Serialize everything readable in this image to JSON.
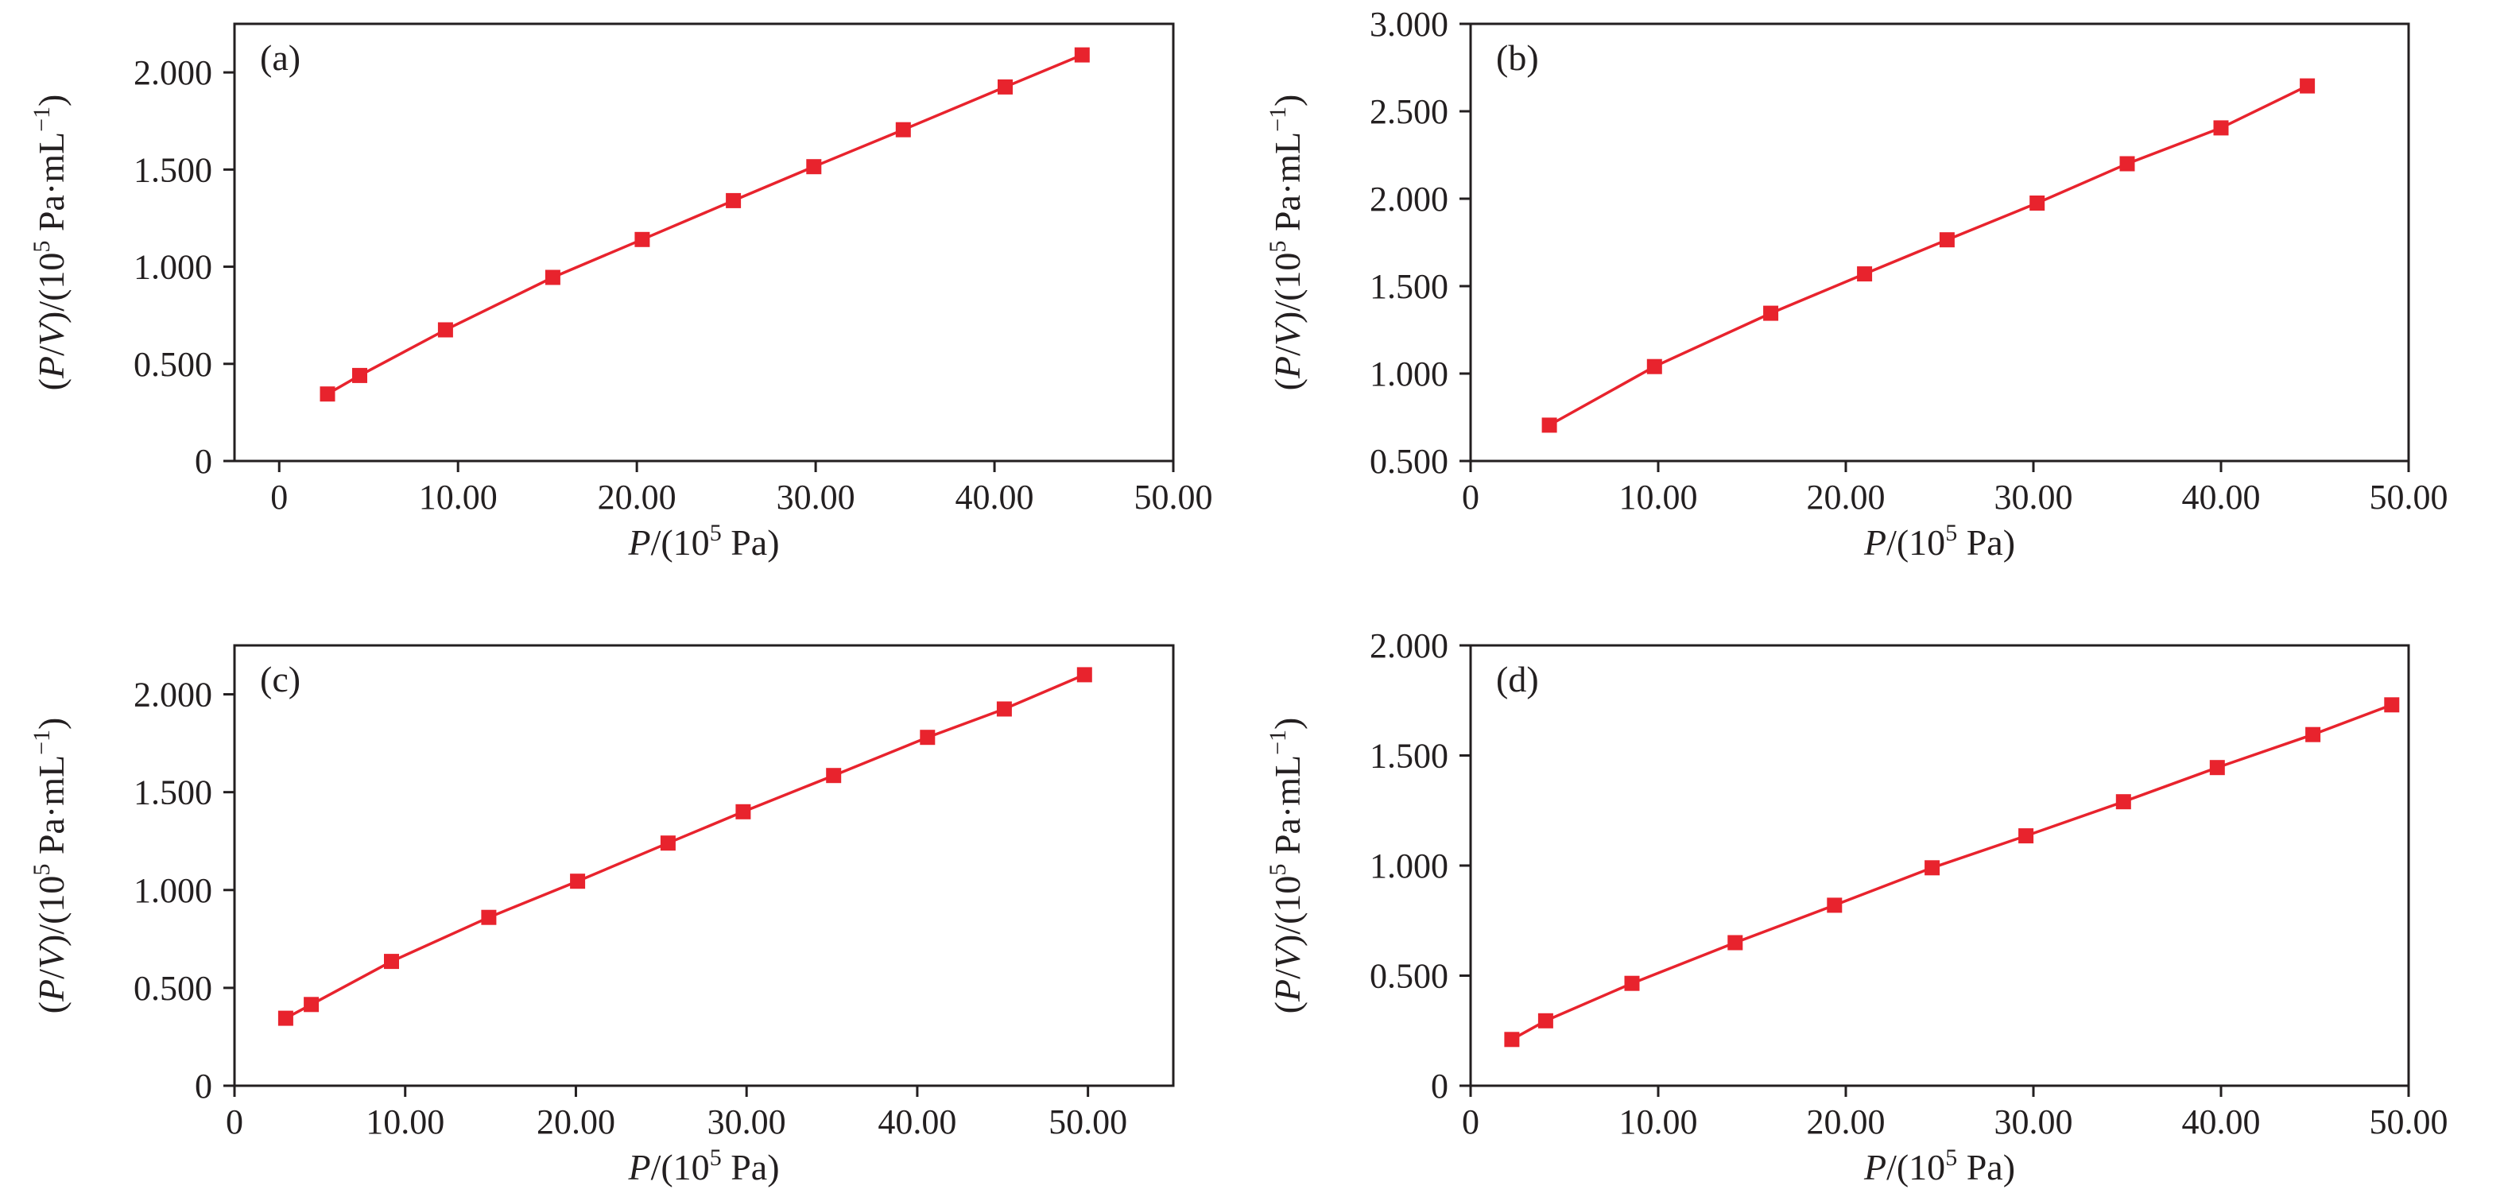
{
  "chart_data": [
    {
      "type": "line",
      "panel_label": "(a)",
      "xlabel": {
        "prefix": "P",
        "mid": "/(10",
        "sup": "5",
        "suffix": " Pa)"
      },
      "ylabel": {
        "p1": "(",
        "p2": "P",
        "p3": "/",
        "p4": "V",
        "p5": ")/(10",
        "sup": "5",
        "p6": " Pa·mL",
        "sup2": "−1",
        "p7": ")"
      },
      "xlim": [
        -2.5,
        50
      ],
      "ylim": [
        0,
        2.25
      ],
      "xticks": [
        0,
        10,
        20,
        30,
        40,
        50
      ],
      "xtick_labels": [
        "0",
        "10.00",
        "20.00",
        "30.00",
        "40.00",
        "50.00"
      ],
      "yticks": [
        0,
        0.5,
        1.0,
        1.5,
        2.0
      ],
      "ytick_labels": [
        "0",
        "0.500",
        "1.000",
        "1.500",
        "2.000"
      ],
      "grid": false,
      "x": [
        2.7,
        4.5,
        9.3,
        15.3,
        20.3,
        25.4,
        29.9,
        34.9,
        40.6,
        44.9
      ],
      "y": [
        0.345,
        0.44,
        0.675,
        0.945,
        1.14,
        1.34,
        1.515,
        1.705,
        1.925,
        2.09
      ]
    },
    {
      "type": "line",
      "panel_label": "(b)",
      "xlabel": {
        "prefix": "P",
        "mid": "/(10",
        "sup": "5",
        "suffix": " Pa)"
      },
      "ylabel": {
        "p1": "(",
        "p2": "P",
        "p3": "/",
        "p4": "V",
        "p5": ")/(10",
        "sup": "5",
        "p6": " Pa·mL",
        "sup2": "−1",
        "p7": ")"
      },
      "xlim": [
        0,
        50
      ],
      "ylim": [
        0.5,
        3.0
      ],
      "xticks": [
        0,
        10,
        20,
        30,
        40,
        50
      ],
      "xtick_labels": [
        "0",
        "10.00",
        "20.00",
        "30.00",
        "40.00",
        "50.00"
      ],
      "yticks": [
        0.5,
        1.0,
        1.5,
        2.0,
        2.5,
        3.0
      ],
      "ytick_labels": [
        "0.500",
        "1.000",
        "1.500",
        "2.000",
        "2.500",
        "3.000"
      ],
      "grid": false,
      "x": [
        4.2,
        9.8,
        16.0,
        21.0,
        25.4,
        30.2,
        35.0,
        40.0,
        44.6
      ],
      "y": [
        0.705,
        1.04,
        1.345,
        1.57,
        1.765,
        1.975,
        2.2,
        2.405,
        2.645
      ]
    },
    {
      "type": "line",
      "panel_label": "(c)",
      "xlabel": {
        "prefix": "P",
        "mid": "/(10",
        "sup": "5",
        "suffix": " Pa)"
      },
      "ylabel": {
        "p1": "(",
        "p2": "P",
        "p3": "/",
        "p4": "V",
        "p5": ")/(10",
        "sup": "5",
        "p6": " Pa·mL",
        "sup2": "−1",
        "p7": ")"
      },
      "xlim": [
        0,
        55
      ],
      "ylim": [
        0,
        2.25
      ],
      "xticks": [
        0,
        10,
        20,
        30,
        40,
        50
      ],
      "xtick_labels": [
        "0",
        "10.00",
        "20.00",
        "30.00",
        "40.00",
        "50.00"
      ],
      "yticks": [
        0,
        0.5,
        1.0,
        1.5,
        2.0
      ],
      "ytick_labels": [
        "0",
        "0.500",
        "1.000",
        "1.500",
        "2.000"
      ],
      "grid": false,
      "x": [
        3.0,
        4.5,
        9.2,
        14.9,
        20.1,
        25.4,
        29.8,
        35.1,
        40.6,
        45.1,
        49.8
      ],
      "y": [
        0.345,
        0.415,
        0.635,
        0.86,
        1.045,
        1.24,
        1.4,
        1.585,
        1.78,
        1.925,
        2.1
      ]
    },
    {
      "type": "line",
      "panel_label": "(d)",
      "xlabel": {
        "prefix": "P",
        "mid": "/(10",
        "sup": "5",
        "suffix": " Pa)"
      },
      "ylabel": {
        "p1": "(",
        "p2": "P",
        "p3": "/",
        "p4": "V",
        "p5": ")/(10",
        "sup": "5",
        "p6": " Pa·mL",
        "sup2": "−1",
        "p7": ")"
      },
      "xlim": [
        0,
        50
      ],
      "ylim": [
        0,
        2.0
      ],
      "xticks": [
        0,
        10,
        20,
        30,
        40,
        50
      ],
      "xtick_labels": [
        "0",
        "10.00",
        "20.00",
        "30.00",
        "40.00",
        "50.00"
      ],
      "yticks": [
        0,
        0.5,
        1.0,
        1.5,
        2.0
      ],
      "ytick_labels": [
        "0",
        "0.500",
        "1.000",
        "1.500",
        "2.000"
      ],
      "grid": false,
      "x": [
        2.2,
        4.0,
        8.6,
        14.1,
        19.4,
        24.6,
        29.6,
        34.8,
        39.8,
        44.9,
        49.1
      ],
      "y": [
        0.21,
        0.295,
        0.465,
        0.65,
        0.82,
        0.99,
        1.135,
        1.29,
        1.445,
        1.595,
        1.73
      ]
    }
  ],
  "colors": {
    "series": "#e8232d",
    "axis": "#231f20",
    "background": "#ffffff"
  }
}
